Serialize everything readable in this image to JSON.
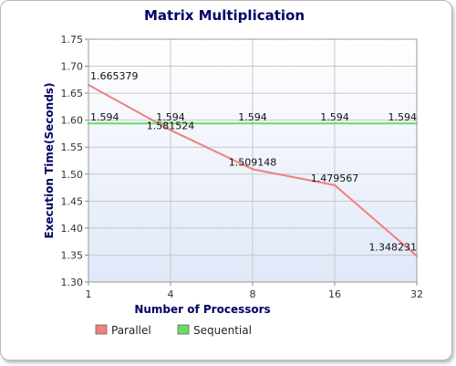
{
  "chart_data": {
    "type": "line",
    "title": "Matrix Multiplication",
    "xlabel": "Number of Processors",
    "ylabel": "Execution Time(Seconds)",
    "categories": [
      "1",
      "4",
      "8",
      "16",
      "32"
    ],
    "ylim": [
      1.3,
      1.75
    ],
    "yticks": [
      "1.30",
      "1.35",
      "1.40",
      "1.45",
      "1.50",
      "1.55",
      "1.60",
      "1.65",
      "1.70",
      "1.75"
    ],
    "grid": true,
    "legend_position": "bottom-left",
    "series": [
      {
        "name": "Parallel",
        "color": "#f08080",
        "values": [
          1.665379,
          1.581524,
          1.509148,
          1.479567,
          1.348231
        ],
        "labels": [
          "1.665379",
          "1.581524",
          "1.509148",
          "1.479567",
          "1.348231"
        ]
      },
      {
        "name": "Sequential",
        "color": "#66dd66",
        "values": [
          1.594,
          1.594,
          1.594,
          1.594,
          1.594
        ],
        "labels": [
          "1.594",
          "1.594",
          "1.594",
          "1.594",
          "1.594"
        ]
      }
    ],
    "colors": {
      "title": "#000066",
      "axis_title": "#000066",
      "plot_bg_top": "#ffffff",
      "plot_bg_bottom": "#e0e8f8",
      "grid": "#c8c8c8"
    }
  }
}
